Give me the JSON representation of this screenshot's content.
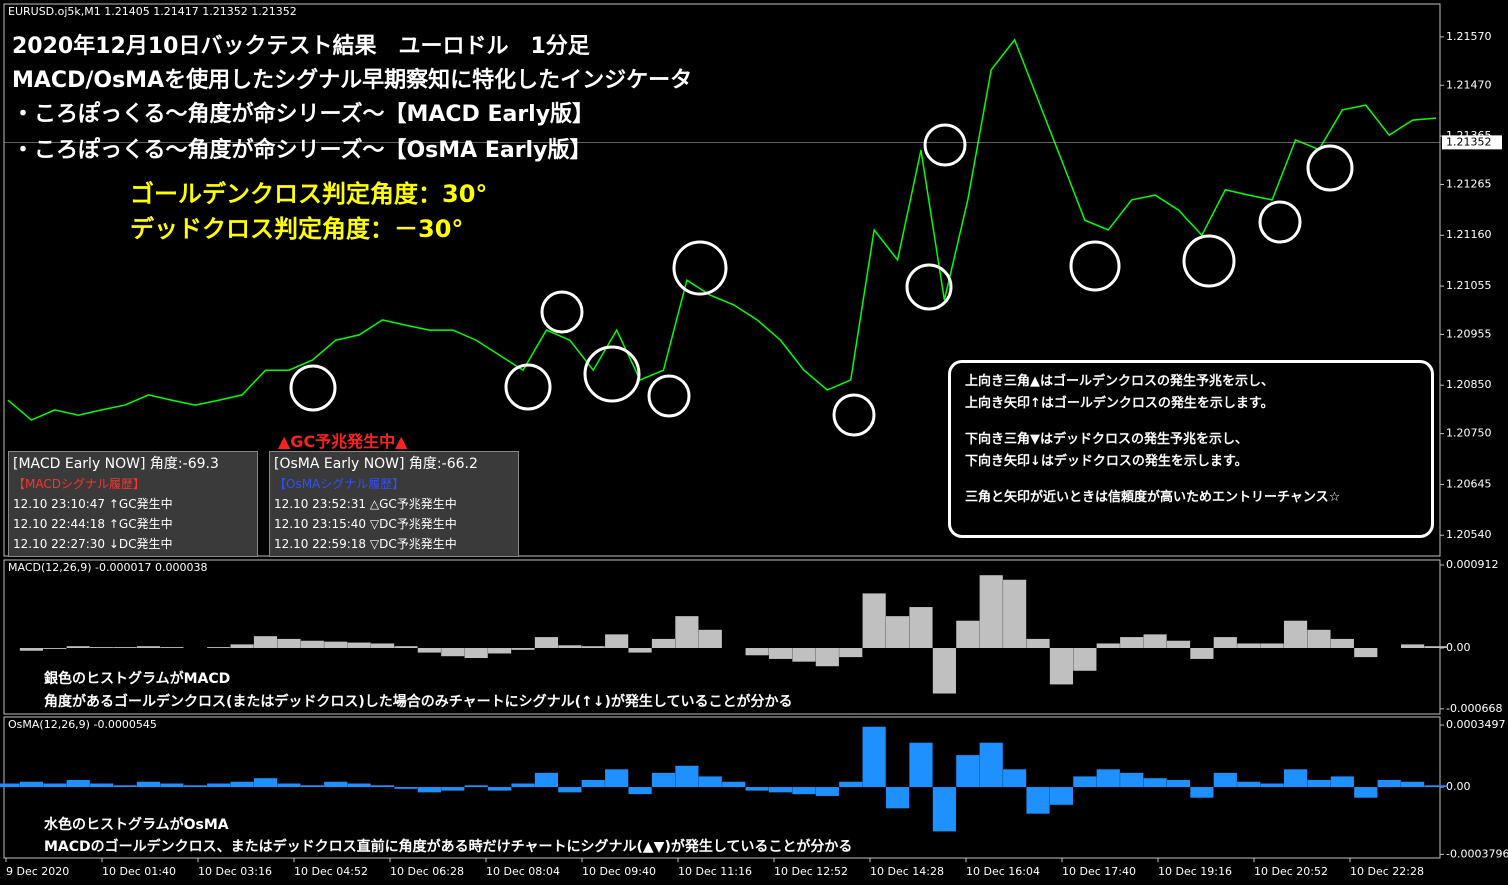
{
  "chart_data": [
    {
      "type": "line",
      "title": "EURUSD.oj5k,M1  1.21405 1.21417 1.21352 1.21352",
      "color": "#00ff00",
      "values": [
        1.20819,
        1.20778,
        1.20799,
        1.20788,
        1.20799,
        1.20809,
        1.2083,
        1.20819,
        1.20809,
        1.20819,
        1.2083,
        1.20881,
        1.20881,
        1.20902,
        1.20943,
        1.20954,
        1.20985,
        1.20974,
        1.20964,
        1.20964,
        1.20943,
        1.20912,
        1.20881,
        1.20964,
        1.20943,
        1.20881,
        1.20964,
        1.20861,
        1.20881,
        1.21067,
        1.21036,
        1.21016,
        1.20985,
        1.20943,
        1.20881,
        1.2084,
        1.20861,
        1.21171,
        1.21109,
        1.21336,
        1.21026,
        1.21233,
        1.21502,
        1.21564,
        1.2144,
        1.21316,
        1.21191,
        1.21171,
        1.21233,
        1.21243,
        1.21212,
        1.2116,
        1.21254,
        1.21243,
        1.21233,
        1.21357,
        1.21337,
        1.21419,
        1.21429,
        1.21367,
        1.21398,
        1.21402
      ],
      "ylim": [
        1.20497,
        1.21638
      ],
      "yticks": [
        {
          "value": 1.2157,
          "label": "1.21570"
        },
        {
          "value": 1.2147,
          "label": "1.21470"
        },
        1.21365,
        1.21265,
        {
          "value": 1.2116,
          "label": "1.21160"
        },
        1.21055,
        1.20955,
        {
          "value": 1.2085,
          "label": "1.20850"
        },
        {
          "value": 1.2075,
          "label": "1.20750"
        },
        1.20645,
        {
          "value": 1.2054,
          "label": "1.20540"
        }
      ],
      "current_price": 1.21352,
      "xticks": [
        "9 Dec 2020",
        "10 Dec 01:40",
        "10 Dec 03:16",
        "10 Dec 04:52",
        "10 Dec 06:28",
        "10 Dec 08:04",
        "10 Dec 09:40",
        "10 Dec 11:16",
        "10 Dec 12:52",
        "10 Dec 14:28",
        "10 Dec 16:04",
        "10 Dec 17:40",
        "10 Dec 19:16",
        "10 Dec 20:52",
        "10 Dec 22:28"
      ]
    },
    {
      "type": "bar",
      "title": "MACD(12,26,9) -0.000017 0.000038",
      "color": "#c0c0c0",
      "values": [
        0.0,
        -3e-05,
        -1e-05,
        2e-05,
        1e-05,
        1e-05,
        2e-05,
        1e-05,
        0.0,
        1e-05,
        4e-05,
        0.00013,
        0.0001,
        8e-05,
        7e-05,
        6e-05,
        5e-05,
        2e-05,
        -5e-05,
        -9e-05,
        -0.00011,
        -6e-05,
        -2e-05,
        0.00012,
        3e-05,
        2e-05,
        0.00015,
        -5e-05,
        0.0001,
        0.00035,
        0.0002,
        0.0,
        -8e-05,
        -0.00012,
        -0.00015,
        -0.0002,
        -0.0001,
        0.0006,
        0.00035,
        0.00045,
        -0.0005,
        0.0003,
        0.0008,
        0.00075,
        0.0001,
        -0.0004,
        -0.00025,
        5e-05,
        0.00012,
        0.00015,
        8e-05,
        -0.00012,
        0.00012,
        5e-05,
        5e-05,
        0.0003,
        0.0002,
        0.0001,
        -0.0001,
        0.0,
        4e-05,
        2e-05
      ],
      "ylim": [
        -0.000725,
        0.000967
      ],
      "yticks": [
        0.000912,
        {
          "value": 0,
          "label": "0.00"
        },
        -0.000668
      ]
    },
    {
      "type": "bar",
      "title": "OsMA(12,26,9) -0.0000545",
      "color": "#1e90ff",
      "values": [
        2e-05,
        3e-05,
        2e-05,
        4e-05,
        2e-05,
        1e-05,
        3e-05,
        2e-05,
        1e-05,
        2e-05,
        3e-05,
        5e-05,
        2e-05,
        1e-05,
        3e-05,
        2e-05,
        1e-05,
        -1e-05,
        -3e-05,
        -2e-05,
        1e-05,
        -2e-05,
        2e-05,
        8e-05,
        -3e-05,
        4e-05,
        0.0001,
        -4e-05,
        8e-05,
        0.00012,
        6e-05,
        3e-05,
        -2e-05,
        -3e-05,
        -4e-05,
        -5e-05,
        3e-05,
        0.00034,
        -0.00012,
        0.00025,
        -0.00025,
        0.00018,
        0.00025,
        0.0001,
        -0.00015,
        -0.0001,
        6e-05,
        0.0001,
        8e-05,
        5e-05,
        4e-05,
        -6e-05,
        8e-05,
        3e-05,
        2e-05,
        0.0001,
        4e-05,
        6e-05,
        -6e-05,
        4e-05,
        3e-05,
        1e-05
      ],
      "ylim": [
        -0.0004,
        0.000395
      ],
      "yticks": [
        0.0003497,
        {
          "value": 0,
          "label": "0.00"
        },
        -0.0003796
      ]
    }
  ],
  "overlay": {
    "title_lines": [
      "2020年12月10日バックテスト結果　ユーロドル　1分足",
      "MACD/OsMAを使用したシグナル早期察知に特化したインジケータ",
      "・ころぽっくる～角度が命シリーズ～【MACD Early版】",
      "・ころぽっくる～角度が命シリーズ～【OsMA Early版】"
    ],
    "angle_lines": [
      "ゴールデンクロス判定角度：30°",
      "デッドクロス判定角度：－30°"
    ],
    "gc_alert": "▲GC予兆発生中▲",
    "macd_box": {
      "header": "[MACD Early NOW] 角度:-69.3",
      "subheader": "【MACDシグナル履歴】",
      "rows": [
        "12.10 23:10:47  ↑GC発生中",
        "12.10 22:44:18  ↑GC発生中",
        "12.10 22:27:30  ↓DC発生中"
      ]
    },
    "osma_box": {
      "header": "[OsMA Early NOW] 角度:-66.2",
      "subheader": "【OsMAシグナル履歴】",
      "rows": [
        "12.10 23:52:31  △GC予兆発生中",
        "12.10 23:15:40  ▽DC予兆発生中",
        "12.10 22:59:18  ▽DC予兆発生中"
      ]
    },
    "legend_box": [
      "上向き三角▲はゴールデンクロスの発生予兆を示し、",
      "上向き矢印↑はゴールデンクロスの発生を示します。",
      "下向き三角▼はデッドクロスの発生予兆を示し、",
      "下向き矢印↓はデッドクロスの発生を示します。",
      "三角と矢印が近いときは信頼度が高いためエントリーチャンス☆"
    ],
    "macd_notes": [
      "銀色のヒストグラムがMACD",
      "角度があるゴールデンクロス(またはデッドクロス)した場合のみチャートにシグナル(↑↓)が発生していることが分かる"
    ],
    "osma_notes": [
      "水色のヒストグラムがOsMA",
      "MACDのゴールデンクロス、またはデッドクロス直前に角度がある時だけチャートにシグナル(▲▼)が発生していることが分かる"
    ]
  }
}
